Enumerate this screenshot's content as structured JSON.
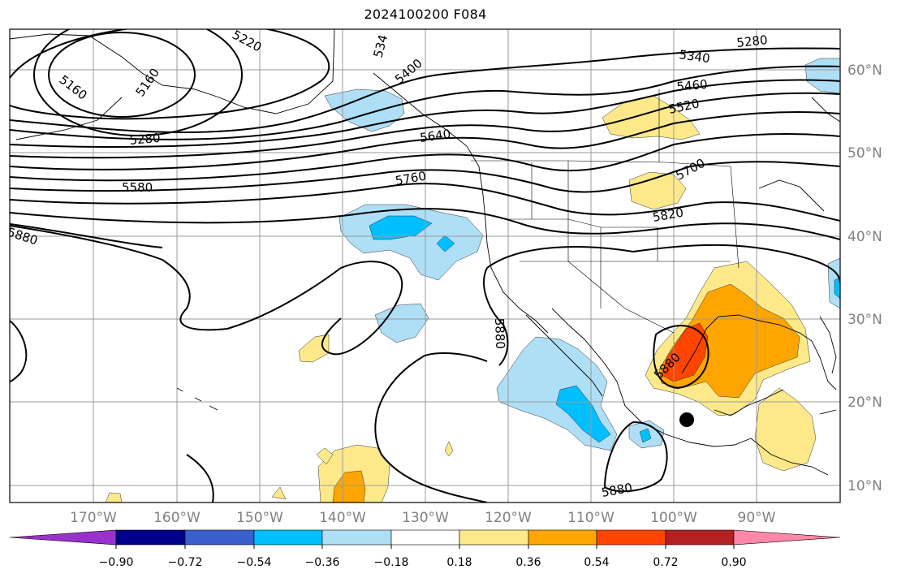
{
  "title": "2024100200 F084",
  "map": {
    "lon_labels": [
      "170°W",
      "160°W",
      "150°W",
      "140°W",
      "130°W",
      "120°W",
      "110°W",
      "100°W",
      "90°W"
    ],
    "lat_labels": [
      "60°N",
      "50°N",
      "40°N",
      "30°N",
      "20°N",
      "10°N"
    ],
    "contour_labels": [
      "5160",
      "5160",
      "5220",
      "5280",
      "534",
      "5400",
      "5340",
      "5280",
      "5460",
      "5520",
      "5640",
      "5580",
      "5760",
      "5700",
      "5820",
      "5880",
      "5880",
      "5880",
      "5880"
    ],
    "anomaly_fill": {
      "positive_colors": [
        "#fde98a",
        "#ffa500",
        "#ff4500",
        "#b22222"
      ],
      "negative_colors": [
        "#aedff7",
        "#00bfff",
        "#3a5fcd",
        "#00008b"
      ]
    },
    "storm_marker": "black-dot"
  },
  "colorbar": {
    "ticks": [
      "−0.90",
      "−0.72",
      "−0.54",
      "−0.36",
      "−0.18",
      "0.18",
      "0.36",
      "0.54",
      "0.72",
      "0.90"
    ],
    "colors": [
      "#9932cc",
      "#00008b",
      "#3a5fcd",
      "#00bfff",
      "#aedff7",
      "#ffffff",
      "#fde98a",
      "#ffa500",
      "#ff4500",
      "#b22222",
      "#ff88aa"
    ]
  }
}
